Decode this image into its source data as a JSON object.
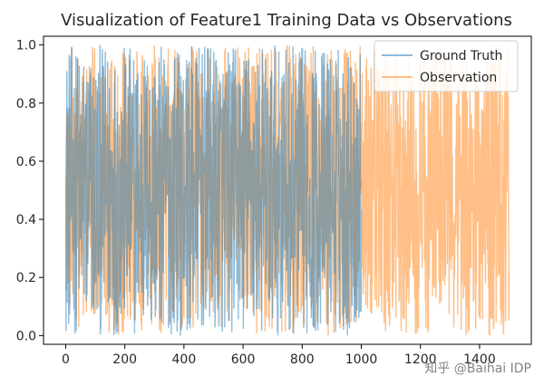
{
  "chart_data": {
    "type": "line",
    "title": "Visualization of Feature1 Training Data vs Observations",
    "xlabel": "",
    "ylabel": "",
    "xlim": [
      -75,
      1575
    ],
    "ylim": [
      -0.03,
      1.03
    ],
    "xticks": [
      0,
      200,
      400,
      600,
      800,
      1000,
      1200,
      1400
    ],
    "yticks": [
      0.0,
      0.2,
      0.4,
      0.6,
      0.8,
      1.0
    ],
    "xtick_labels": [
      "0",
      "200",
      "400",
      "600",
      "800",
      "1000",
      "1200",
      "1400"
    ],
    "ytick_labels": [
      "0.0",
      "0.2",
      "0.4",
      "0.6",
      "0.8",
      "1.0"
    ],
    "legend_position": "top-right",
    "series": [
      {
        "name": "Ground Truth",
        "color": "#1f77b4",
        "alpha": 0.5,
        "x_range": [
          0,
          1000
        ],
        "value_range": [
          0.0,
          1.0
        ],
        "pattern": "uniform random noise"
      },
      {
        "name": "Observation",
        "color": "#ff7f0e",
        "alpha": 0.5,
        "x_range": [
          0,
          1500
        ],
        "value_range": [
          0.0,
          1.0
        ],
        "pattern": "uniform random noise"
      }
    ]
  },
  "watermark": "知乎 @Baihai IDP"
}
